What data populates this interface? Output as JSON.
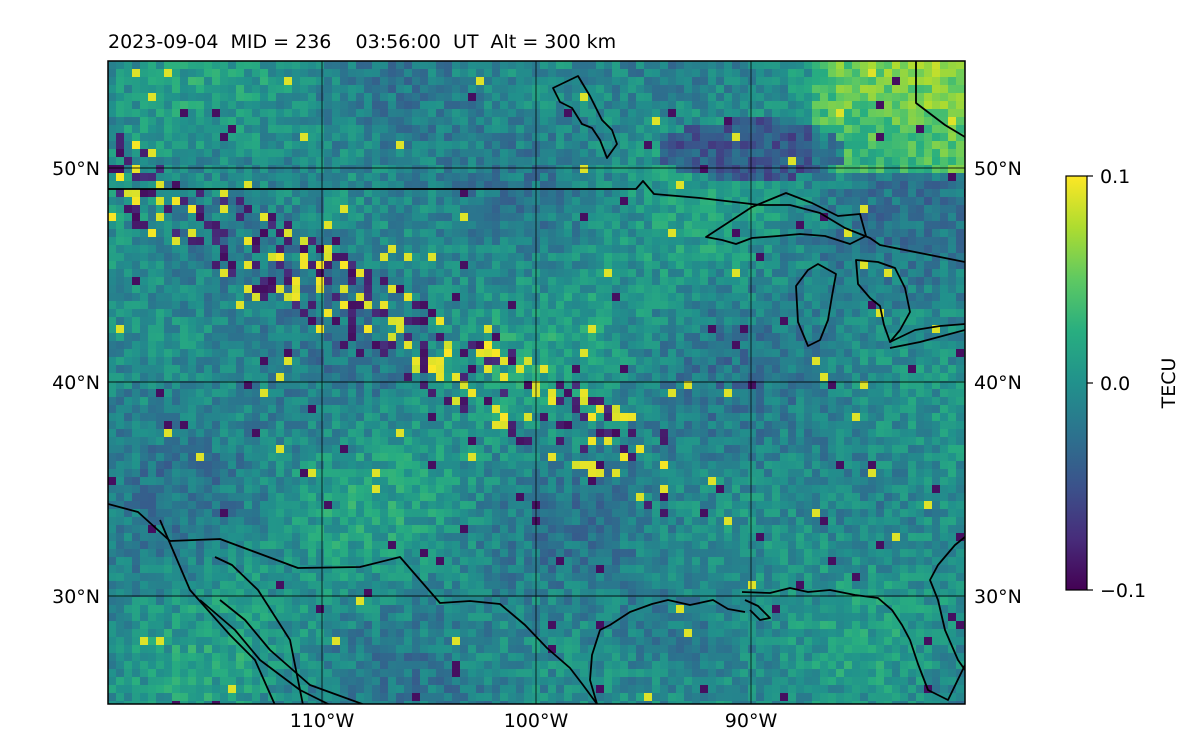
{
  "title": "2023-09-04  MID = 236    03:56:00  UT  Alt = 300 km",
  "map": {
    "lon_range": [
      -120,
      -80
    ],
    "lat_range": [
      25,
      55
    ],
    "lat_ticks": [
      {
        "value": 50,
        "label": "50°N"
      },
      {
        "value": 40,
        "label": "40°N"
      },
      {
        "value": 30,
        "label": "30°N"
      }
    ],
    "lon_ticks": [
      {
        "value": -110,
        "label": "110°W"
      },
      {
        "value": -100,
        "label": "100°W"
      },
      {
        "value": -90,
        "label": "90°W"
      }
    ],
    "gridlines": true,
    "colormap": "viridis",
    "map_features": [
      "coastlines",
      "country-borders"
    ]
  },
  "colorbar": {
    "label": "TECU",
    "range": [
      -0.1,
      0.1
    ],
    "ticks": [
      {
        "value": 0.1,
        "label": "0.1"
      },
      {
        "value": 0.0,
        "label": "0.0"
      },
      {
        "value": -0.1,
        "label": "−0.1"
      }
    ]
  },
  "colors": {
    "viridis_low": "#440154",
    "viridis_mid": "#21918c",
    "viridis_high": "#fde725",
    "frame": "#000000",
    "background": "#ffffff"
  }
}
